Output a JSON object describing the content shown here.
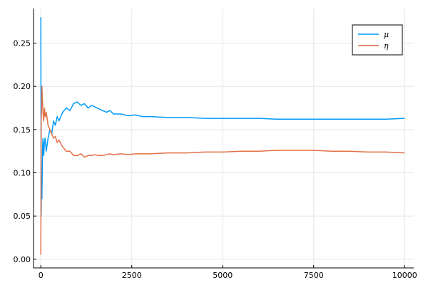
{
  "chart_data": {
    "type": "line",
    "title": "",
    "xlabel": "",
    "ylabel": "",
    "xlim": [
      -200,
      10250
    ],
    "ylim": [
      -0.01,
      0.29
    ],
    "x_ticks": [
      0,
      2500,
      5000,
      7500,
      10000
    ],
    "x_tick_labels": [
      "0",
      "2500",
      "5000",
      "7500",
      "10000"
    ],
    "y_ticks": [
      0.0,
      0.05,
      0.1,
      0.15,
      0.2,
      0.25
    ],
    "y_tick_labels": [
      "0.00",
      "0.05",
      "0.10",
      "0.15",
      "0.20",
      "0.25"
    ],
    "grid": true,
    "legend_position": "top-right",
    "series": [
      {
        "name": "μ",
        "color": "#009af9",
        "x": [
          1,
          10,
          20,
          30,
          40,
          50,
          60,
          80,
          100,
          120,
          150,
          200,
          250,
          300,
          350,
          400,
          450,
          500,
          600,
          700,
          800,
          900,
          1000,
          1100,
          1200,
          1300,
          1400,
          1500,
          1600,
          1700,
          1800,
          1900,
          2000,
          2200,
          2400,
          2600,
          2800,
          3000,
          3500,
          4000,
          4500,
          5000,
          5500,
          6000,
          6500,
          7000,
          7500,
          8000,
          8500,
          9000,
          9500,
          10000
        ],
        "y": [
          0.28,
          0.05,
          0.09,
          0.07,
          0.1,
          0.13,
          0.14,
          0.12,
          0.135,
          0.14,
          0.125,
          0.14,
          0.15,
          0.145,
          0.16,
          0.155,
          0.165,
          0.16,
          0.17,
          0.175,
          0.172,
          0.18,
          0.182,
          0.178,
          0.18,
          0.175,
          0.178,
          0.176,
          0.174,
          0.172,
          0.17,
          0.172,
          0.168,
          0.168,
          0.166,
          0.167,
          0.165,
          0.165,
          0.164,
          0.164,
          0.163,
          0.163,
          0.163,
          0.163,
          0.162,
          0.162,
          0.162,
          0.162,
          0.162,
          0.162,
          0.162,
          0.163
        ]
      },
      {
        "name": "η",
        "color": "#e26f46",
        "x": [
          1,
          10,
          20,
          30,
          40,
          50,
          60,
          80,
          100,
          120,
          150,
          200,
          250,
          300,
          350,
          400,
          450,
          500,
          600,
          700,
          800,
          900,
          1000,
          1100,
          1200,
          1300,
          1400,
          1500,
          1600,
          1700,
          1800,
          1900,
          2000,
          2200,
          2400,
          2600,
          2800,
          3000,
          3500,
          4000,
          4500,
          5000,
          5500,
          6000,
          6500,
          7000,
          7500,
          8000,
          8500,
          9000,
          9500,
          10000
        ],
        "y": [
          0.005,
          0.16,
          0.17,
          0.2,
          0.19,
          0.18,
          0.17,
          0.16,
          0.175,
          0.165,
          0.17,
          0.155,
          0.15,
          0.145,
          0.14,
          0.142,
          0.135,
          0.138,
          0.13,
          0.125,
          0.125,
          0.12,
          0.12,
          0.122,
          0.118,
          0.12,
          0.12,
          0.121,
          0.12,
          0.12,
          0.121,
          0.122,
          0.121,
          0.122,
          0.121,
          0.122,
          0.122,
          0.122,
          0.123,
          0.123,
          0.124,
          0.124,
          0.125,
          0.125,
          0.126,
          0.126,
          0.126,
          0.125,
          0.125,
          0.124,
          0.124,
          0.123
        ]
      }
    ]
  }
}
